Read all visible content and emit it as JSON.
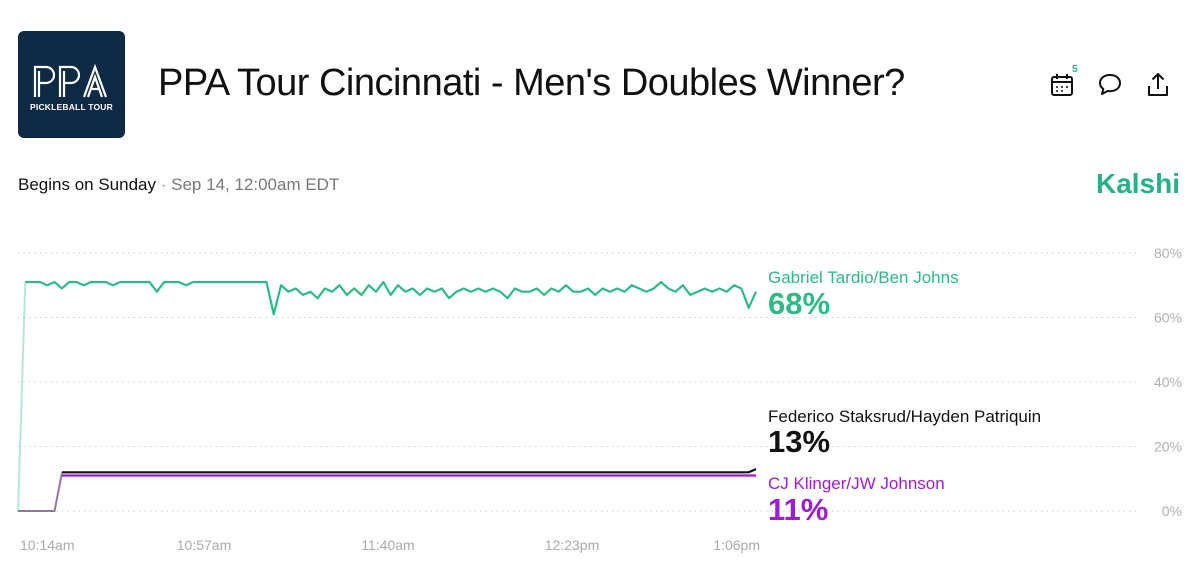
{
  "header": {
    "logo_text": "PPA",
    "logo_subtext": "PICKLEBALL TOUR",
    "title": "PPA Tour Cincinnati - Men's Doubles Winner?",
    "calendar_badge": "5",
    "icons": [
      "calendar-icon",
      "comment-icon",
      "share-icon"
    ]
  },
  "subheader": {
    "begins": "Begins on Sunday",
    "separator": "·",
    "date": "Sep 14, 12:00am EDT",
    "brand": "Kalshi",
    "brand_color": "#23b387"
  },
  "chart_data": {
    "type": "line",
    "x_ticks": [
      "10:14am",
      "10:57am",
      "11:40am",
      "12:23pm",
      "1:06pm"
    ],
    "y_ticks": [
      "80%",
      "60%",
      "40%",
      "20%",
      "0%"
    ],
    "ylim": [
      0,
      80
    ],
    "grid": true,
    "series": [
      {
        "name": "Gabriel Tardio/Ben Johns",
        "current": "68%",
        "color": "#2dba85",
        "values": [
          0,
          71,
          71,
          71,
          70,
          71,
          69,
          71,
          71,
          70,
          71,
          71,
          71,
          70,
          71,
          71,
          71,
          71,
          71,
          68,
          71,
          71,
          71,
          70,
          71,
          71,
          71,
          71,
          71,
          71,
          71,
          71,
          71,
          71,
          71,
          61,
          70,
          68,
          69,
          67,
          68,
          66,
          69,
          68,
          70,
          67,
          69,
          67,
          70,
          68,
          71,
          67,
          70,
          68,
          69,
          67,
          69,
          68,
          69,
          66,
          68,
          69,
          68,
          69,
          68,
          69,
          68,
          66,
          69,
          68,
          68,
          69,
          67,
          69,
          68,
          70,
          68,
          68,
          69,
          67,
          69,
          68,
          69,
          68,
          70,
          69,
          68,
          69,
          71,
          69,
          68,
          70,
          67,
          68,
          69,
          68,
          69,
          68,
          70,
          69,
          63,
          68
        ]
      },
      {
        "name": "Federico Staksrud/Hayden Patriquin",
        "current": "13%",
        "color": "#111111",
        "values": [
          0,
          0,
          0,
          0,
          0,
          0,
          12,
          12,
          12,
          12,
          12,
          12,
          12,
          12,
          12,
          12,
          12,
          12,
          12,
          12,
          12,
          12,
          12,
          12,
          12,
          12,
          12,
          12,
          12,
          12,
          12,
          12,
          12,
          12,
          12,
          12,
          12,
          12,
          12,
          12,
          12,
          12,
          12,
          12,
          12,
          12,
          12,
          12,
          12,
          12,
          12,
          12,
          12,
          12,
          12,
          12,
          12,
          12,
          12,
          12,
          12,
          12,
          12,
          12,
          12,
          12,
          12,
          12,
          12,
          12,
          12,
          12,
          12,
          12,
          12,
          12,
          12,
          12,
          12,
          12,
          12,
          12,
          12,
          12,
          12,
          12,
          12,
          12,
          12,
          12,
          12,
          12,
          12,
          12,
          12,
          12,
          12,
          12,
          12,
          12,
          12,
          13
        ]
      },
      {
        "name": "CJ Klinger/JW Johnson",
        "current": "11%",
        "color": "#9b1fd1",
        "values": [
          0,
          0,
          0,
          0,
          0,
          0,
          11,
          11,
          11,
          11,
          11,
          11,
          11,
          11,
          11,
          11,
          11,
          11,
          11,
          11,
          11,
          11,
          11,
          11,
          11,
          11,
          11,
          11,
          11,
          11,
          11,
          11,
          11,
          11,
          11,
          11,
          11,
          11,
          11,
          11,
          11,
          11,
          11,
          11,
          11,
          11,
          11,
          11,
          11,
          11,
          11,
          11,
          11,
          11,
          11,
          11,
          11,
          11,
          11,
          11,
          11,
          11,
          11,
          11,
          11,
          11,
          11,
          11,
          11,
          11,
          11,
          11,
          11,
          11,
          11,
          11,
          11,
          11,
          11,
          11,
          11,
          11,
          11,
          11,
          11,
          11,
          11,
          11,
          11,
          11,
          11,
          11,
          11,
          11,
          11,
          11,
          11,
          11,
          11,
          11,
          11,
          11
        ]
      }
    ]
  }
}
